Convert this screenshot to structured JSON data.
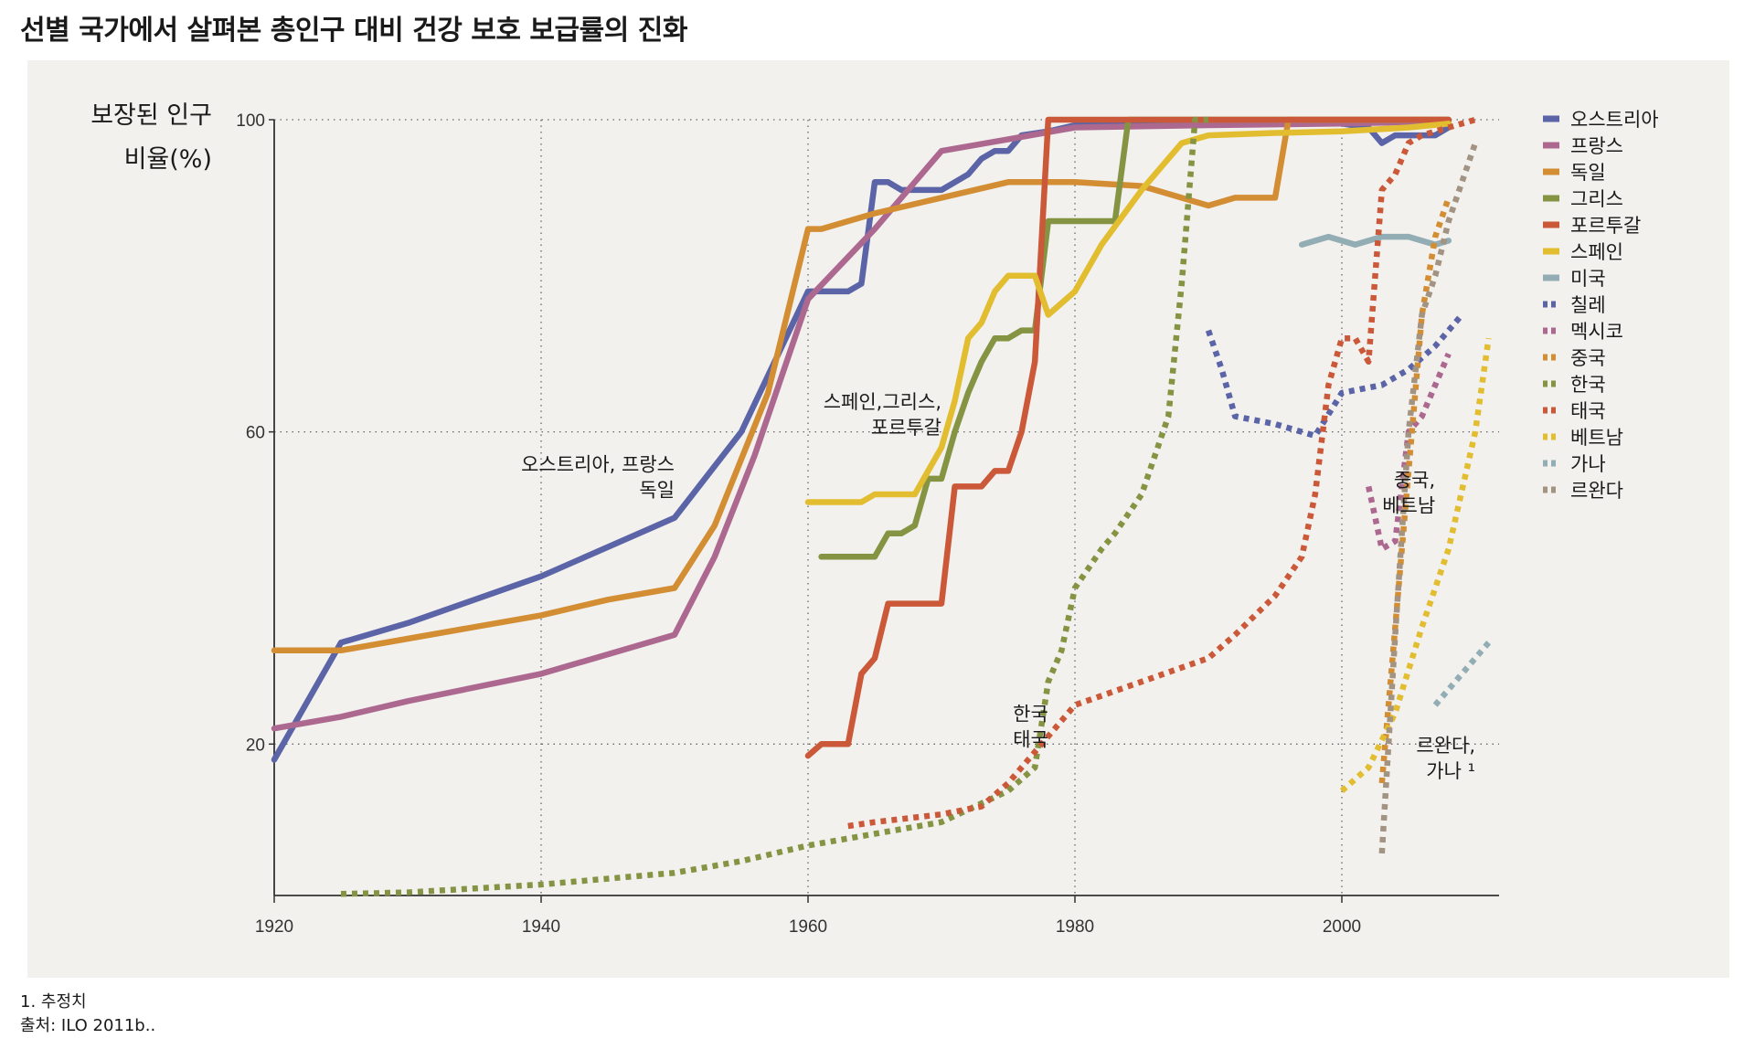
{
  "title": "선별 국가에서 살펴본 총인구 대비 건강 보호 보급률의 진화",
  "footnotes": {
    "note1": "1. 추정치",
    "source": "출처: ILO 2011b.."
  },
  "chart_data": {
    "type": "line",
    "title": "선별 국가에서 살펴본 총인구 대비 건강 보호 보급률의 진화",
    "ylabel_line1": "보장된 인구",
    "ylabel_line2": "비율(%)",
    "xlabel": "",
    "xlim": [
      1920,
      2012
    ],
    "ylim": [
      0.6,
      100
    ],
    "x_ticks": [
      1920,
      1940,
      1960,
      1980,
      2000
    ],
    "y_ticks": [
      20,
      60,
      100
    ],
    "grid": "dotted",
    "legend_position": "right",
    "annotations": [
      {
        "lines": [
          "오스트리아, 프랑스",
          "독일"
        ],
        "x": 1950,
        "y": 55
      },
      {
        "lines": [
          "스페인,그리스,",
          "포르투갈"
        ],
        "x": 1970,
        "y": 63
      },
      {
        "lines": [
          "한국",
          "태국"
        ],
        "x": 1978,
        "y": 23
      },
      {
        "lines": [
          "중국,",
          "베트남"
        ],
        "x": 2007,
        "y": 53
      },
      {
        "lines": [
          "르완다,",
          "가나 ¹"
        ],
        "x": 2010,
        "y": 19
      }
    ],
    "series": [
      {
        "name": "오스트리아",
        "color": "#5b64a6",
        "style": "solid",
        "points": [
          [
            1920,
            18
          ],
          [
            1925,
            33
          ],
          [
            1930,
            35.5
          ],
          [
            1940,
            41.5
          ],
          [
            1950,
            49
          ],
          [
            1955,
            60
          ],
          [
            1960,
            78
          ],
          [
            1963,
            78
          ],
          [
            1964,
            79
          ],
          [
            1965,
            92
          ],
          [
            1966,
            92
          ],
          [
            1967,
            91
          ],
          [
            1970,
            91
          ],
          [
            1972,
            93
          ],
          [
            1973,
            95
          ],
          [
            1974,
            96
          ],
          [
            1975,
            96
          ],
          [
            1976,
            98
          ],
          [
            1978,
            98.5
          ],
          [
            1980,
            99.3
          ],
          [
            1990,
            99.5
          ],
          [
            2000,
            99.5
          ],
          [
            2002,
            99
          ],
          [
            2003,
            97
          ],
          [
            2004,
            98
          ],
          [
            2005,
            98
          ],
          [
            2007,
            98
          ],
          [
            2008,
            99
          ]
        ]
      },
      {
        "name": "프랑스",
        "color": "#ad6890",
        "style": "solid",
        "points": [
          [
            1920,
            22
          ],
          [
            1925,
            23.5
          ],
          [
            1930,
            25.5
          ],
          [
            1940,
            29
          ],
          [
            1950,
            34
          ],
          [
            1953,
            44
          ],
          [
            1956,
            57
          ],
          [
            1960,
            77
          ],
          [
            1965,
            86
          ],
          [
            1968,
            92
          ],
          [
            1970,
            96
          ],
          [
            1975,
            97.5
          ],
          [
            1980,
            99
          ],
          [
            1990,
            99.3
          ],
          [
            2000,
            99.5
          ],
          [
            2008,
            99.8
          ]
        ]
      },
      {
        "name": "독일",
        "color": "#d38d33",
        "style": "solid",
        "points": [
          [
            1920,
            32
          ],
          [
            1925,
            32
          ],
          [
            1930,
            33.5
          ],
          [
            1940,
            36.5
          ],
          [
            1945,
            38.5
          ],
          [
            1950,
            40
          ],
          [
            1953,
            48
          ],
          [
            1957,
            65
          ],
          [
            1960,
            86
          ],
          [
            1961,
            86
          ],
          [
            1965,
            88
          ],
          [
            1970,
            90
          ],
          [
            1975,
            92
          ],
          [
            1980,
            92
          ],
          [
            1985,
            91.5
          ],
          [
            1990,
            89
          ],
          [
            1992,
            90
          ],
          [
            1995,
            90
          ],
          [
            1996,
            100
          ],
          [
            2000,
            100
          ],
          [
            2008,
            100
          ]
        ]
      },
      {
        "name": "그리스",
        "color": "#859443",
        "style": "solid",
        "points": [
          [
            1961,
            44
          ],
          [
            1965,
            44
          ],
          [
            1966,
            47
          ],
          [
            1967,
            47
          ],
          [
            1968,
            48
          ],
          [
            1969,
            54
          ],
          [
            1970,
            54
          ],
          [
            1971,
            60
          ],
          [
            1972,
            65
          ],
          [
            1973,
            69
          ],
          [
            1974,
            72
          ],
          [
            1975,
            72
          ],
          [
            1976,
            73
          ],
          [
            1977,
            73
          ],
          [
            1978,
            87
          ],
          [
            1980,
            87
          ],
          [
            1983,
            87
          ],
          [
            1984,
            100
          ],
          [
            1990,
            100
          ],
          [
            2000,
            100
          ],
          [
            2008,
            100
          ]
        ]
      },
      {
        "name": "포르투갈",
        "color": "#cb5838",
        "style": "solid",
        "points": [
          [
            1960,
            18.5
          ],
          [
            1961,
            20
          ],
          [
            1963,
            20
          ],
          [
            1964,
            29
          ],
          [
            1965,
            31
          ],
          [
            1966,
            38
          ],
          [
            1970,
            38
          ],
          [
            1971,
            53
          ],
          [
            1973,
            53
          ],
          [
            1974,
            55
          ],
          [
            1975,
            55
          ],
          [
            1976,
            60
          ],
          [
            1977,
            69
          ],
          [
            1978,
            100
          ],
          [
            1980,
            100
          ],
          [
            1990,
            100
          ],
          [
            2000,
            100
          ],
          [
            2008,
            100
          ]
        ]
      },
      {
        "name": "스페인",
        "color": "#e1bd2f",
        "style": "solid",
        "points": [
          [
            1960,
            51
          ],
          [
            1964,
            51
          ],
          [
            1965,
            52
          ],
          [
            1968,
            52
          ],
          [
            1970,
            58
          ],
          [
            1971,
            64
          ],
          [
            1972,
            72
          ],
          [
            1973,
            74
          ],
          [
            1974,
            78
          ],
          [
            1975,
            80
          ],
          [
            1977,
            80
          ],
          [
            1978,
            75
          ],
          [
            1980,
            78
          ],
          [
            1982,
            84
          ],
          [
            1985,
            91
          ],
          [
            1988,
            97
          ],
          [
            1990,
            98
          ],
          [
            1995,
            98.3
          ],
          [
            2000,
            98.5
          ],
          [
            2005,
            99
          ],
          [
            2008,
            99.5
          ]
        ]
      },
      {
        "name": "미국",
        "color": "#92adb3",
        "style": "solid",
        "points": [
          [
            1997,
            84
          ],
          [
            1999,
            85
          ],
          [
            2001,
            84
          ],
          [
            2003,
            85
          ],
          [
            2005,
            85
          ],
          [
            2007,
            84
          ],
          [
            2008,
            84.5
          ]
        ]
      },
      {
        "name": "칠레",
        "color": "#5b64a6",
        "style": "dashed",
        "points": [
          [
            1990,
            73
          ],
          [
            1991,
            68
          ],
          [
            1992,
            62
          ],
          [
            1995,
            61
          ],
          [
            1998,
            59.5
          ],
          [
            2000,
            65
          ],
          [
            2003,
            66
          ],
          [
            2005,
            68
          ],
          [
            2007,
            71
          ],
          [
            2009,
            75
          ]
        ]
      },
      {
        "name": "멕시코",
        "color": "#ad6890",
        "style": "dashed",
        "points": [
          [
            2002,
            53
          ],
          [
            2003,
            45
          ],
          [
            2004,
            46
          ],
          [
            2005,
            60
          ],
          [
            2006,
            62
          ],
          [
            2007,
            66
          ],
          [
            2008,
            70
          ]
        ]
      },
      {
        "name": "중국",
        "color": "#d38d33",
        "style": "dashed",
        "points": [
          [
            2003,
            15
          ],
          [
            2004,
            35
          ],
          [
            2005,
            55
          ],
          [
            2006,
            75
          ],
          [
            2007,
            85
          ],
          [
            2008,
            90
          ]
        ]
      },
      {
        "name": "한국",
        "color": "#859443",
        "style": "dashed",
        "points": [
          [
            1925,
            0.8
          ],
          [
            1930,
            1
          ],
          [
            1940,
            2
          ],
          [
            1950,
            3.5
          ],
          [
            1955,
            5
          ],
          [
            1960,
            7
          ],
          [
            1965,
            8.5
          ],
          [
            1970,
            10
          ],
          [
            1975,
            14
          ],
          [
            1977,
            17
          ],
          [
            1978,
            28
          ],
          [
            1979,
            32
          ],
          [
            1980,
            40
          ],
          [
            1982,
            45
          ],
          [
            1983,
            47
          ],
          [
            1985,
            52
          ],
          [
            1987,
            62
          ],
          [
            1988,
            79
          ],
          [
            1989,
            100
          ],
          [
            1990,
            100
          ]
        ]
      },
      {
        "name": "태국",
        "color": "#cb5838",
        "style": "dashed",
        "points": [
          [
            1963,
            9.5
          ],
          [
            1965,
            10
          ],
          [
            1970,
            11
          ],
          [
            1973,
            12
          ],
          [
            1975,
            15
          ],
          [
            1978,
            21
          ],
          [
            1980,
            25
          ],
          [
            1985,
            28
          ],
          [
            1990,
            31
          ],
          [
            1992,
            34
          ],
          [
            1995,
            39
          ],
          [
            1997,
            44
          ],
          [
            1998,
            52
          ],
          [
            1999,
            66
          ],
          [
            2000,
            72
          ],
          [
            2001,
            72
          ],
          [
            2002,
            69
          ],
          [
            2003,
            91
          ],
          [
            2004,
            93
          ],
          [
            2005,
            97
          ],
          [
            2006,
            98
          ],
          [
            2008,
            99
          ],
          [
            2010,
            100
          ]
        ]
      },
      {
        "name": "베트남",
        "color": "#e1bd2f",
        "style": "dashed",
        "points": [
          [
            2000,
            14
          ],
          [
            2002,
            17
          ],
          [
            2004,
            24
          ],
          [
            2006,
            35
          ],
          [
            2008,
            45
          ],
          [
            2010,
            60
          ],
          [
            2011,
            72
          ]
        ]
      },
      {
        "name": "가나",
        "color": "#92adb3",
        "style": "dashed",
        "points": [
          [
            2007,
            25
          ],
          [
            2009,
            29
          ],
          [
            2011,
            33
          ]
        ]
      },
      {
        "name": "르완다",
        "color": "#a29383",
        "style": "dashed",
        "points": [
          [
            2003,
            6
          ],
          [
            2004,
            34
          ],
          [
            2005,
            60
          ],
          [
            2006,
            75
          ],
          [
            2007,
            80
          ],
          [
            2008,
            87
          ],
          [
            2009,
            92
          ],
          [
            2010,
            97
          ]
        ]
      }
    ]
  }
}
